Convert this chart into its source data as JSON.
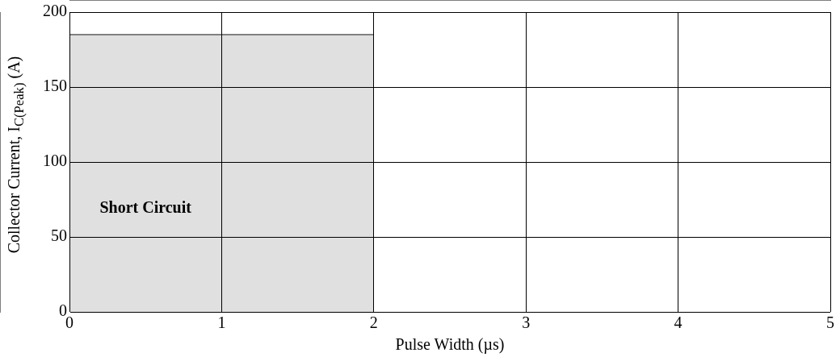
{
  "chart_data": {
    "type": "area",
    "xlabel": "Pulse Width (µs)",
    "ylabel": "Collector Current, I$_{C(Peak)}$ (A)",
    "series": [
      {
        "color": "#e0e0e0",
        "x": [
          0,
          2
        ],
        "values": [
          185,
          185
        ]
      }
    ],
    "xlim": [
      0,
      5
    ],
    "xticks": [
      0,
      1,
      2,
      3,
      4,
      5
    ],
    "ylim": [
      0,
      200
    ],
    "yticks": [
      0,
      50,
      100,
      150,
      200
    ],
    "grid": true,
    "legend": false,
    "marker": "none",
    "annotations": [
      "Short Circuit"
    ]
  }
}
